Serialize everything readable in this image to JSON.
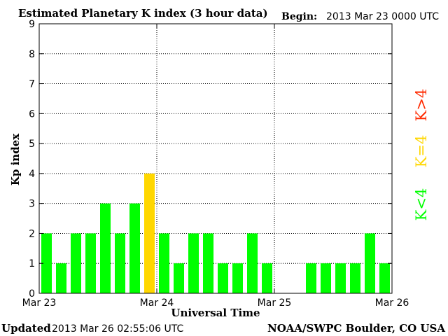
{
  "header": {
    "title": "Estimated Planetary K index (3 hour data)",
    "begin_label": "Begin:",
    "begin_value": "2013 Mar 23 0000 UTC"
  },
  "footer": {
    "updated_label": "Updated",
    "updated_value": "2013 Mar 26 02:55:06 UTC",
    "source": "NOAA/SWPC Boulder, CO USA"
  },
  "legend": {
    "high": "K>4",
    "mid": "K=4",
    "low": "K<4"
  },
  "colors": {
    "low": "#00ff00",
    "mid": "#ffd700",
    "high": "#ff2a00",
    "grid": "#000000"
  },
  "chart_data": {
    "type": "bar",
    "title": "Estimated Planetary K index (3 hour data)",
    "xlabel": "Universal Time",
    "ylabel": "Kp index",
    "ylim": [
      0,
      9
    ],
    "yticks": [
      "0",
      "1",
      "2",
      "3",
      "4",
      "5",
      "6",
      "7",
      "8",
      "9"
    ],
    "xticks": [
      "Mar 23",
      "Mar 24",
      "Mar 25",
      "Mar 26"
    ],
    "grid": true,
    "bins_per_day": 8,
    "values": [
      2,
      1,
      2,
      2,
      3,
      2,
      3,
      4,
      2,
      1,
      2,
      2,
      1,
      1,
      2,
      1,
      null,
      null,
      1,
      1,
      1,
      1,
      2,
      1
    ]
  }
}
